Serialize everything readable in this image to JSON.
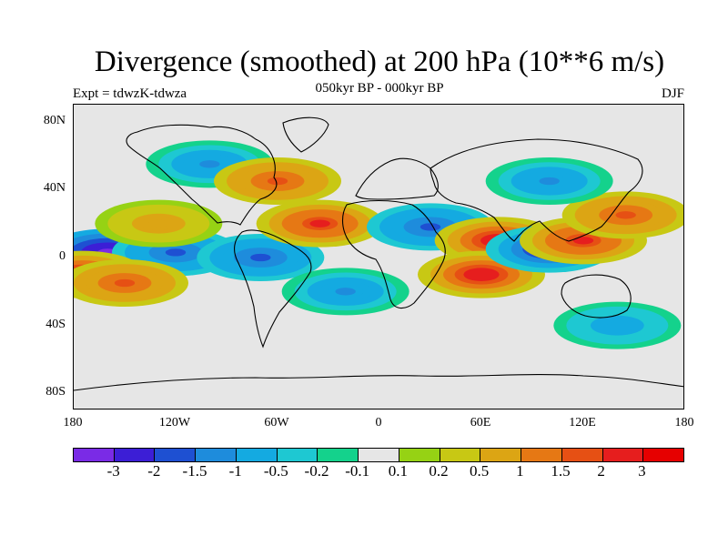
{
  "title": "Divergence (smoothed) at 200 hPa (10**6 m/s)",
  "subtitle": "050kyr BP - 000kyr BP",
  "experiment_label": "Expt = tdwzK-tdwza",
  "season": "DJF",
  "axes": {
    "latitude_ticks": [
      "80N",
      "40N",
      "0",
      "40S",
      "80S"
    ],
    "longitude_ticks": [
      "180",
      "120W",
      "60W",
      "0",
      "60E",
      "120E",
      "180"
    ],
    "longitude_range": [
      -180,
      180
    ],
    "latitude_range": [
      -90,
      90
    ]
  },
  "colorbar": {
    "labels": [
      "-3",
      "-2",
      "-1.5",
      "-1",
      "-0.5",
      "-0.2",
      "-0.1",
      "0.1",
      "0.2",
      "0.5",
      "1",
      "1.5",
      "2",
      "3"
    ],
    "colors": [
      "#7a2be6",
      "#3c1ed6",
      "#1e50d2",
      "#1e8cdc",
      "#14aae1",
      "#1ec8d2",
      "#14d28c",
      "#e6e6e6",
      "#96d214",
      "#c8c814",
      "#dca514",
      "#e67814",
      "#e65014",
      "#e61e1e",
      "#e60000"
    ]
  },
  "chart_data": {
    "type": "heatmap",
    "title": "Divergence (smoothed) at 200 hPa (10**6 m/s)",
    "subtitle": "050kyr BP - 000kyr BP",
    "x_range": [
      -180,
      180
    ],
    "y_range": [
      -90,
      90
    ],
    "contour_levels": [
      -3,
      -2,
      -1.5,
      -1,
      -0.5,
      -0.2,
      -0.1,
      0.1,
      0.2,
      0.5,
      1,
      1.5,
      2,
      3
    ],
    "features": [
      {
        "lon": -160,
        "lat": 3,
        "value": -3.2
      },
      {
        "lon": -120,
        "lat": 3,
        "value": -1.8
      },
      {
        "lon": -70,
        "lat": 0,
        "value": -1.6
      },
      {
        "lon": -175,
        "lat": -10,
        "value": 2.5
      },
      {
        "lon": -150,
        "lat": -15,
        "value": 1.6
      },
      {
        "lon": -130,
        "lat": 20,
        "value": 0.8
      },
      {
        "lon": -100,
        "lat": 55,
        "value": -1.2
      },
      {
        "lon": -60,
        "lat": 45,
        "value": 1.6
      },
      {
        "lon": -35,
        "lat": 20,
        "value": 2.0
      },
      {
        "lon": 30,
        "lat": 18,
        "value": -1.8
      },
      {
        "lon": 70,
        "lat": 10,
        "value": 2.4
      },
      {
        "lon": 60,
        "lat": -10,
        "value": 2.6
      },
      {
        "lon": 100,
        "lat": 5,
        "value": -2.6
      },
      {
        "lon": 120,
        "lat": 10,
        "value": 2.0
      },
      {
        "lon": 145,
        "lat": 25,
        "value": 1.5
      },
      {
        "lon": 100,
        "lat": 45,
        "value": -1.2
      },
      {
        "lon": -20,
        "lat": -20,
        "value": -1.1
      },
      {
        "lon": 140,
        "lat": -40,
        "value": -0.8
      }
    ]
  }
}
